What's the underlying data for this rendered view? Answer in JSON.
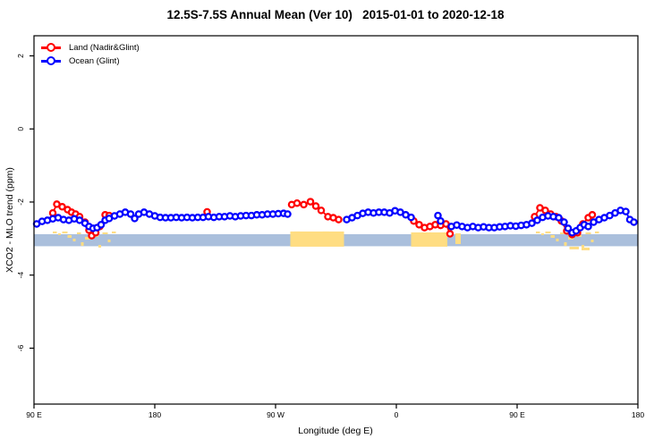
{
  "chart_data": {
    "type": "line",
    "title": "12.5S-7.5S Annual Mean (Ver 10)   2015-01-01 to 2020-12-18",
    "xlabel": "Longitude (deg E)",
    "ylabel": "XCO2 - MLO trend (ppm)",
    "xlim": [
      90,
      540
    ],
    "ylim": [
      -7.53,
      2.55
    ],
    "grid": false,
    "x_ticks": [
      {
        "pos": 90,
        "label": "90 E"
      },
      {
        "pos": 180,
        "label": "180"
      },
      {
        "pos": 270,
        "label": "90 W"
      },
      {
        "pos": 360,
        "label": "0"
      },
      {
        "pos": 450,
        "label": "90 E"
      },
      {
        "pos": 540,
        "label": "180"
      }
    ],
    "y_ticks": [
      {
        "pos": 2,
        "label": "2"
      },
      {
        "pos": 0,
        "label": "0"
      },
      {
        "pos": -2,
        "label": "-2"
      },
      {
        "pos": -4,
        "label": "-4"
      },
      {
        "pos": -6,
        "label": "-6"
      }
    ],
    "legend": {
      "position": "top-left",
      "items": [
        {
          "label": "Land (Nadir&Glint)",
          "color": "#ff0000"
        },
        {
          "label": "Ocean (Glint)",
          "color": "#0000ff"
        }
      ]
    },
    "series": [
      {
        "name": "Land (Nadir&Glint)",
        "color": "#ff0000",
        "marker": "open-circle",
        "segments": [
          [
            [
              104,
              -2.3
            ],
            [
              107,
              -2.06
            ],
            [
              111,
              -2.13
            ],
            [
              115,
              -2.21
            ],
            [
              118,
              -2.28
            ],
            [
              121,
              -2.33
            ],
            [
              124,
              -2.4
            ],
            [
              128,
              -2.55
            ],
            [
              131,
              -2.77
            ],
            [
              133,
              -2.92
            ],
            [
              136,
              -2.84
            ],
            [
              139,
              -2.67
            ],
            [
              143,
              -2.35
            ],
            [
              146,
              -2.37
            ]
          ],
          [
            [
              219,
              -2.27
            ]
          ],
          [
            [
              282,
              -2.07
            ],
            [
              286,
              -2.03
            ],
            [
              291,
              -2.07
            ],
            [
              296,
              -1.99
            ],
            [
              300,
              -2.11
            ],
            [
              304,
              -2.23
            ],
            [
              309,
              -2.4
            ],
            [
              313,
              -2.43
            ],
            [
              317,
              -2.48
            ]
          ],
          [
            [
              373,
              -2.52
            ],
            [
              377,
              -2.62
            ],
            [
              381,
              -2.7
            ],
            [
              385,
              -2.67
            ],
            [
              389,
              -2.62
            ],
            [
              393,
              -2.64
            ],
            [
              397,
              -2.6
            ],
            [
              400,
              -2.87
            ]
          ],
          [
            [
              463,
              -2.4
            ],
            [
              467,
              -2.16
            ],
            [
              471,
              -2.23
            ],
            [
              475,
              -2.33
            ],
            [
              479,
              -2.4
            ],
            [
              483,
              -2.52
            ],
            [
              487,
              -2.79
            ],
            [
              491,
              -2.89
            ],
            [
              495,
              -2.84
            ],
            [
              499,
              -2.6
            ],
            [
              503,
              -2.43
            ],
            [
              506,
              -2.35
            ]
          ]
        ]
      },
      {
        "name": "Ocean (Glint)",
        "color": "#0000ff",
        "marker": "open-circle",
        "segments": [
          [
            [
              92,
              -2.6
            ],
            [
              96,
              -2.53
            ],
            [
              100,
              -2.5
            ],
            [
              104,
              -2.46
            ],
            [
              108,
              -2.43
            ],
            [
              112,
              -2.48
            ],
            [
              116,
              -2.5
            ],
            [
              120,
              -2.46
            ],
            [
              124,
              -2.5
            ],
            [
              128,
              -2.58
            ],
            [
              131,
              -2.67
            ],
            [
              134,
              -2.72
            ],
            [
              137,
              -2.7
            ],
            [
              140,
              -2.62
            ],
            [
              143,
              -2.5
            ],
            [
              146,
              -2.45
            ],
            [
              150,
              -2.38
            ],
            [
              154,
              -2.33
            ],
            [
              158,
              -2.28
            ],
            [
              162,
              -2.33
            ],
            [
              165,
              -2.45
            ],
            [
              168,
              -2.33
            ],
            [
              172,
              -2.28
            ],
            [
              176,
              -2.33
            ],
            [
              180,
              -2.38
            ],
            [
              184,
              -2.42
            ],
            [
              188,
              -2.43
            ],
            [
              192,
              -2.43
            ],
            [
              196,
              -2.42
            ],
            [
              200,
              -2.43
            ],
            [
              204,
              -2.42
            ],
            [
              208,
              -2.43
            ],
            [
              212,
              -2.42
            ],
            [
              216,
              -2.42
            ],
            [
              220,
              -2.4
            ],
            [
              224,
              -2.42
            ],
            [
              228,
              -2.4
            ],
            [
              232,
              -2.4
            ],
            [
              236,
              -2.38
            ],
            [
              240,
              -2.4
            ],
            [
              244,
              -2.38
            ],
            [
              248,
              -2.37
            ],
            [
              252,
              -2.37
            ],
            [
              256,
              -2.35
            ],
            [
              260,
              -2.35
            ],
            [
              264,
              -2.33
            ],
            [
              268,
              -2.33
            ],
            [
              272,
              -2.32
            ],
            [
              276,
              -2.31
            ],
            [
              279,
              -2.33
            ]
          ],
          [
            [
              323,
              -2.48
            ],
            [
              327,
              -2.43
            ],
            [
              331,
              -2.37
            ],
            [
              335,
              -2.31
            ],
            [
              339,
              -2.28
            ],
            [
              343,
              -2.3
            ],
            [
              347,
              -2.28
            ],
            [
              351,
              -2.28
            ],
            [
              355,
              -2.3
            ],
            [
              359,
              -2.24
            ],
            [
              363,
              -2.28
            ],
            [
              367,
              -2.35
            ],
            [
              371,
              -2.42
            ]
          ],
          [
            [
              391,
              -2.37
            ],
            [
              393,
              -2.52
            ]
          ],
          [
            [
              401,
              -2.67
            ],
            [
              405,
              -2.63
            ],
            [
              409,
              -2.67
            ],
            [
              413,
              -2.7
            ],
            [
              417,
              -2.67
            ],
            [
              421,
              -2.7
            ],
            [
              425,
              -2.68
            ],
            [
              429,
              -2.7
            ],
            [
              433,
              -2.7
            ],
            [
              437,
              -2.68
            ],
            [
              441,
              -2.67
            ],
            [
              445,
              -2.65
            ],
            [
              449,
              -2.66
            ],
            [
              453,
              -2.64
            ],
            [
              457,
              -2.62
            ],
            [
              461,
              -2.58
            ],
            [
              465,
              -2.5
            ],
            [
              469,
              -2.42
            ],
            [
              473,
              -2.38
            ],
            [
              477,
              -2.4
            ],
            [
              481,
              -2.43
            ],
            [
              485,
              -2.55
            ],
            [
              488,
              -2.72
            ],
            [
              491,
              -2.84
            ],
            [
              494,
              -2.79
            ],
            [
              497,
              -2.7
            ],
            [
              500,
              -2.62
            ],
            [
              503,
              -2.67
            ],
            [
              507,
              -2.55
            ],
            [
              511,
              -2.48
            ],
            [
              515,
              -2.43
            ],
            [
              519,
              -2.37
            ],
            [
              523,
              -2.3
            ],
            [
              527,
              -2.23
            ],
            [
              531,
              -2.26
            ],
            [
              534,
              -2.48
            ],
            [
              537,
              -2.55
            ]
          ]
        ]
      }
    ],
    "map_strip": {
      "top_value": -2.88,
      "bottom_value": -3.21,
      "ocean_color": "#aabfdc",
      "land_color": "#ffdd82",
      "land_blocks": [
        [
          281,
          321,
          -3,
          17
        ],
        [
          371,
          398,
          -2,
          16
        ],
        [
          404,
          408,
          -1,
          12
        ]
      ],
      "speckles": [
        [
          104,
          3,
          -3,
          2
        ],
        [
          108,
          2,
          -1,
          2
        ],
        [
          111,
          4,
          -3,
          2
        ],
        [
          115,
          3,
          1,
          3
        ],
        [
          119,
          2,
          5,
          3
        ],
        [
          122,
          3,
          -2,
          2
        ],
        [
          125,
          2,
          9,
          4
        ],
        [
          128,
          4,
          3,
          3
        ],
        [
          132,
          2,
          -4,
          3
        ],
        [
          135,
          3,
          1,
          2
        ],
        [
          138,
          2,
          12,
          3
        ],
        [
          141,
          4,
          -2,
          2
        ],
        [
          145,
          2,
          6,
          3
        ],
        [
          148,
          3,
          -3,
          2
        ],
        [
          284,
          4,
          -3,
          3
        ],
        [
          305,
          5,
          -3,
          3
        ],
        [
          464,
          3,
          -3,
          2
        ],
        [
          468,
          2,
          -1,
          2
        ],
        [
          471,
          4,
          -3,
          2
        ],
        [
          475,
          3,
          1,
          3
        ],
        [
          479,
          2,
          5,
          3
        ],
        [
          482,
          3,
          -2,
          2
        ],
        [
          485,
          2,
          9,
          4
        ],
        [
          488,
          4,
          3,
          3
        ],
        [
          492,
          2,
          -4,
          3
        ],
        [
          495,
          3,
          1,
          2
        ],
        [
          498,
          2,
          12,
          3
        ],
        [
          501,
          4,
          -2,
          2
        ],
        [
          505,
          2,
          6,
          3
        ],
        [
          508,
          3,
          -3,
          2
        ],
        [
          489,
          7,
          14,
          3
        ],
        [
          498,
          6,
          15,
          3
        ]
      ]
    }
  }
}
